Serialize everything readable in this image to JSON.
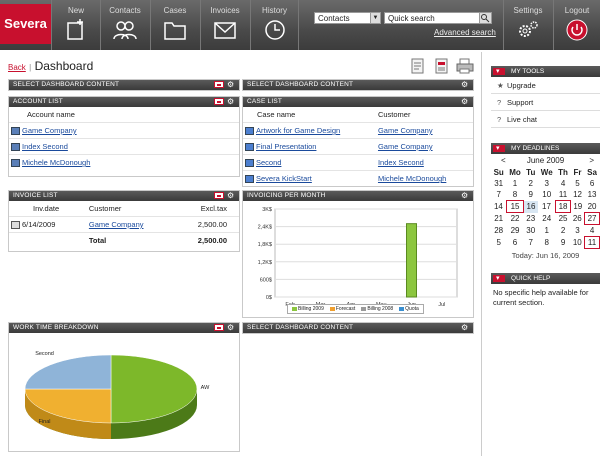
{
  "app": {
    "logo": "Severa"
  },
  "nav": [
    {
      "label": "New",
      "icon": "new-icon"
    },
    {
      "label": "Contacts",
      "icon": "contacts-icon"
    },
    {
      "label": "Cases",
      "icon": "folder-icon"
    },
    {
      "label": "Invoices",
      "icon": "envelope-icon"
    },
    {
      "label": "History",
      "icon": "clock-icon"
    }
  ],
  "search": {
    "scope": "Contacts",
    "placeholder": "Quick search",
    "advanced": "Advanced search"
  },
  "right_nav": {
    "settings": "Settings",
    "logout": "Logout"
  },
  "page": {
    "back": "Back",
    "separator": "|",
    "title": "Dashboard"
  },
  "panels": {
    "select1": "SELECT DASHBOARD CONTENT",
    "select2": "SELECT DASHBOARD CONTENT",
    "select3": "SELECT DASHBOARD CONTENT",
    "account": {
      "title": "ACCOUNT LIST",
      "col": "Account name",
      "rows": [
        "Game Company",
        "Index Second",
        "Michele McDonough"
      ]
    },
    "case": {
      "title": "CASE LIST",
      "cols": [
        "Case name",
        "Customer"
      ],
      "rows": [
        {
          "name": "Artwork for Game Design",
          "customer": "Game Company"
        },
        {
          "name": "Final Presentation",
          "customer": "Game Company"
        },
        {
          "name": "Second",
          "customer": "Index Second"
        },
        {
          "name": "Severa KickStart",
          "customer": "Michele McDonough"
        }
      ]
    },
    "invoice": {
      "title": "INVOICE LIST",
      "cols": [
        "Inv.date",
        "Customer",
        "Excl.tax"
      ],
      "rows": [
        {
          "date": "6/14/2009",
          "customer": "Game Company",
          "amount": "2,500.00"
        }
      ],
      "total_label": "Total",
      "total": "2,500.00"
    },
    "invoicing": {
      "title": "INVOICING PER MONTH"
    },
    "worktime": {
      "title": "WORK TIME BREAKDOWN"
    }
  },
  "chart_data": [
    {
      "type": "bar",
      "categories": [
        "Feb",
        "Mar",
        "Apr",
        "May",
        "Jun",
        "Jul"
      ],
      "yticks": [
        "0$",
        "600$",
        "1,2K$",
        "1,8K$",
        "2,4K$",
        "3K$"
      ],
      "ylim": [
        0,
        3000
      ],
      "series": [
        {
          "name": "Billing 2009",
          "color": "#8cc63f",
          "values": [
            0,
            0,
            0,
            0,
            2500,
            0
          ]
        },
        {
          "name": "Forecast",
          "color": "#f0a030",
          "values": [
            0,
            0,
            0,
            0,
            0,
            0
          ]
        },
        {
          "name": "Billing 2008",
          "color": "#9a9a9a",
          "values": [
            0,
            0,
            0,
            0,
            0,
            0
          ]
        },
        {
          "name": "Quota",
          "color": "#3a8fd0",
          "values": [
            0,
            0,
            0,
            0,
            0,
            0
          ]
        }
      ],
      "grid": true,
      "legend": "bottom"
    },
    {
      "type": "pie",
      "labels": [
        "AW",
        "Final",
        "Second"
      ],
      "values": [
        50,
        25,
        25
      ],
      "colors": [
        "#7db82a",
        "#f0b030",
        "#8fb4d8"
      ]
    }
  ],
  "sidebar": {
    "tools": {
      "title": "MY TOOLS",
      "items": [
        {
          "label": "Upgrade",
          "icon": "star-icon"
        },
        {
          "label": "Support",
          "icon": "question-icon"
        },
        {
          "label": "Live chat",
          "icon": "question-icon"
        }
      ]
    },
    "deadlines": {
      "title": "MY DEADLINES",
      "month": "June 2009",
      "prev": "<",
      "next": ">",
      "days": [
        "Su",
        "Mo",
        "Tu",
        "We",
        "Th",
        "Fr",
        "Sa"
      ],
      "weeks": [
        [
          "31",
          "1",
          "2",
          "3",
          "4",
          "5",
          "6"
        ],
        [
          "7",
          "8",
          "9",
          "10",
          "11",
          "12",
          "13"
        ],
        [
          "14",
          "15",
          "16",
          "17",
          "18",
          "19",
          "20"
        ],
        [
          "21",
          "22",
          "23",
          "24",
          "25",
          "26",
          "27"
        ],
        [
          "28",
          "29",
          "30",
          "1",
          "2",
          "3",
          "4"
        ],
        [
          "5",
          "6",
          "7",
          "8",
          "9",
          "10",
          "11"
        ]
      ],
      "today": "Today: Jun 16, 2009"
    },
    "help": {
      "title": "QUICK HELP",
      "text": "No specific help available for current section."
    }
  }
}
